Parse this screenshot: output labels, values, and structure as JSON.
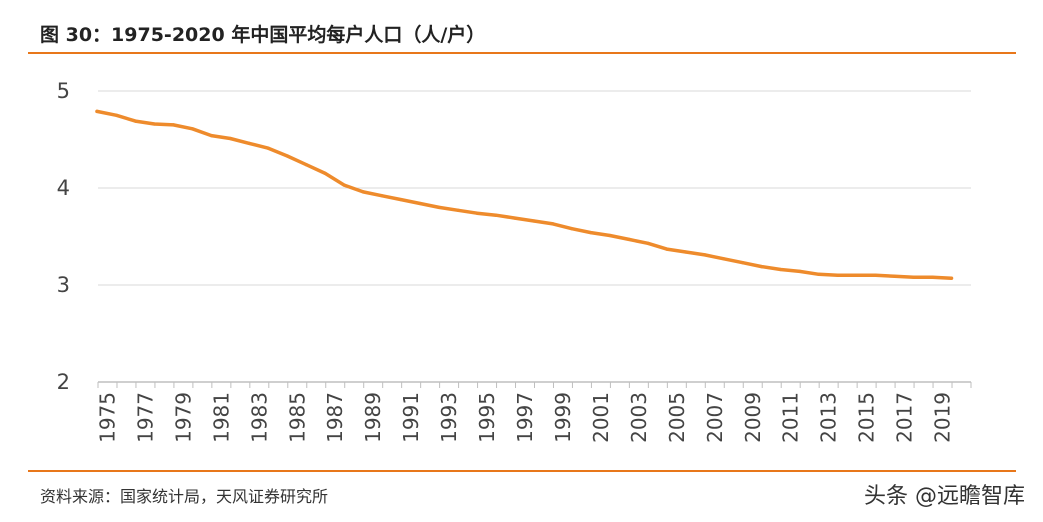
{
  "header": {
    "title": "图 30：1975-2020 年中国平均每户人口（人/户）"
  },
  "footer": {
    "source": "资料来源：国家统计局，天风证券研究所",
    "watermark": "头条 @远瞻智库"
  },
  "colors": {
    "accent": "#E8771A",
    "line": "#EE8B2C",
    "grid": "#D9D9D9"
  },
  "chart_data": {
    "type": "line",
    "title": "",
    "xlabel": "",
    "ylabel": "",
    "ylim": [
      2,
      5
    ],
    "yticks": [
      2,
      3,
      4,
      5
    ],
    "grid": true,
    "x": [
      1975,
      1976,
      1977,
      1978,
      1979,
      1980,
      1981,
      1982,
      1983,
      1984,
      1985,
      1986,
      1987,
      1988,
      1989,
      1990,
      1991,
      1992,
      1993,
      1994,
      1995,
      1996,
      1997,
      1998,
      1999,
      2000,
      2001,
      2002,
      2003,
      2004,
      2005,
      2006,
      2007,
      2008,
      2009,
      2010,
      2011,
      2012,
      2013,
      2014,
      2015,
      2016,
      2017,
      2018,
      2019,
      2020
    ],
    "xtick_labels": [
      "1975",
      "1977",
      "1979",
      "1981",
      "1983",
      "1985",
      "1987",
      "1989",
      "1991",
      "1993",
      "1995",
      "1997",
      "1999",
      "2001",
      "2003",
      "2005",
      "2007",
      "2009",
      "2011",
      "2013",
      "2015",
      "2017",
      "2019"
    ],
    "series": [
      {
        "values": [
          4.79,
          4.75,
          4.69,
          4.66,
          4.65,
          4.61,
          4.54,
          4.51,
          4.46,
          4.41,
          4.33,
          4.24,
          4.15,
          4.03,
          3.96,
          3.92,
          3.88,
          3.84,
          3.8,
          3.77,
          3.74,
          3.72,
          3.69,
          3.66,
          3.63,
          3.58,
          3.54,
          3.51,
          3.47,
          3.43,
          3.37,
          3.34,
          3.31,
          3.27,
          3.23,
          3.19,
          3.16,
          3.14,
          3.11,
          3.1,
          3.1,
          3.1,
          3.09,
          3.08,
          3.08,
          3.07
        ]
      }
    ]
  }
}
